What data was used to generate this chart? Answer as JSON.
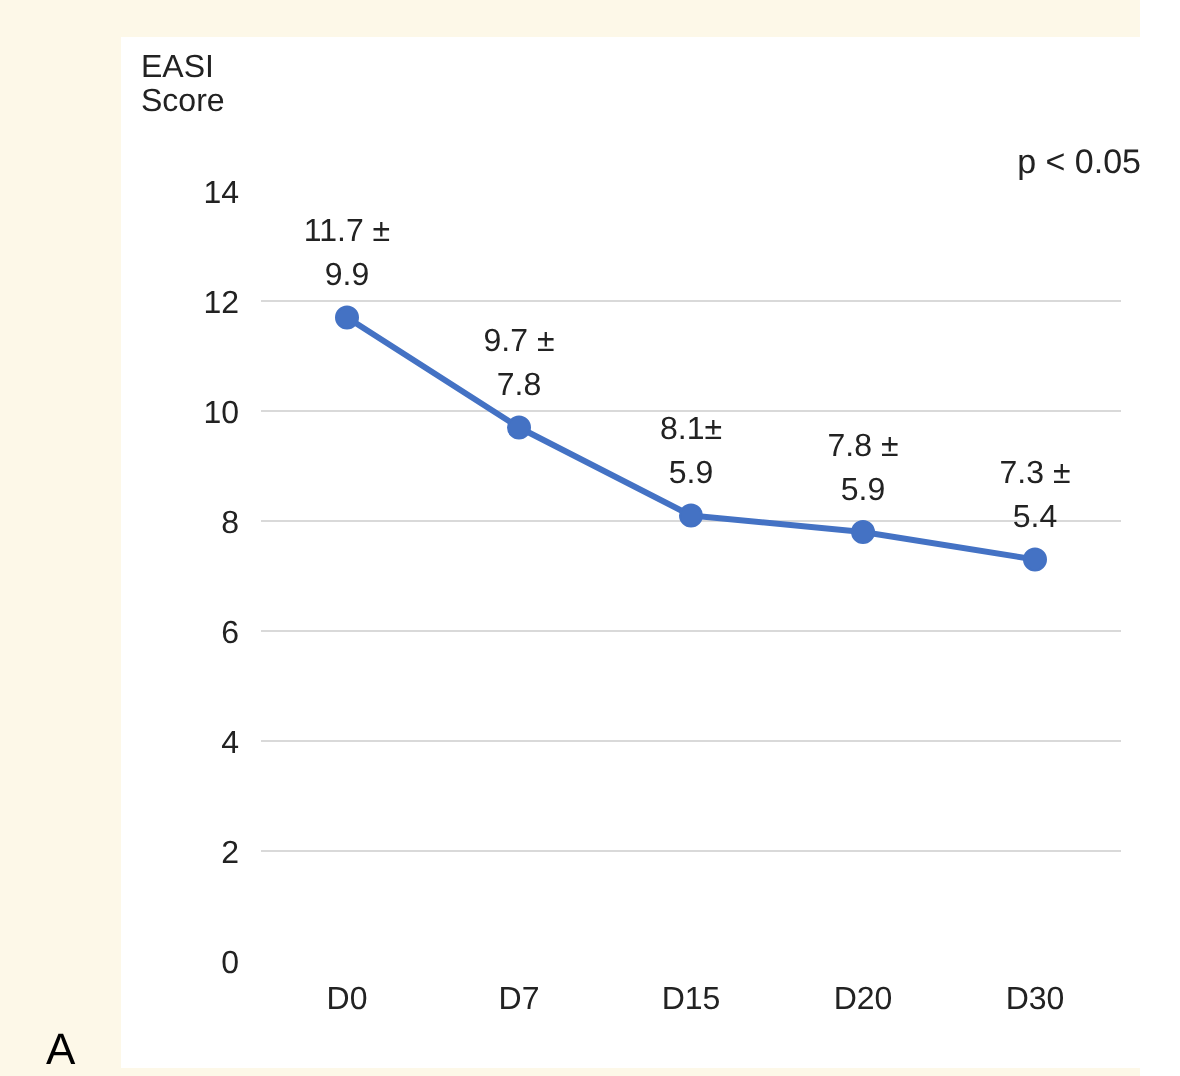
{
  "chart_data": {
    "type": "line",
    "ylabel": "EASI Score",
    "categories": [
      "D0",
      "D7",
      "D15",
      "D20",
      "D30"
    ],
    "series": [
      {
        "color": "#4472c4",
        "values": [
          11.7,
          9.7,
          8.1,
          7.8,
          7.3
        ],
        "value_labels": [
          "11.7 ±\n9.9",
          "9.7 ±\n7.8",
          "8.1±\n5.9",
          "7.8 ±\n5.9",
          "7.3 ±\n5.4"
        ]
      }
    ],
    "ylim": [
      0,
      14
    ],
    "yticks": [
      0,
      2,
      4,
      6,
      8,
      10,
      12,
      14
    ],
    "grid": "y",
    "marker": "circle",
    "line_style": "solid",
    "annotations": [
      "p < 0.05",
      "A"
    ]
  }
}
